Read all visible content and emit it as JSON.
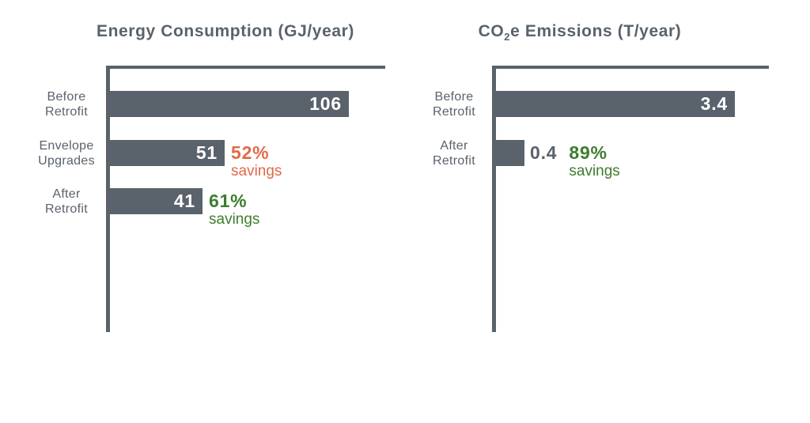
{
  "colors": {
    "slate": "#5A626C",
    "orange": "#E1694B",
    "green": "#3D7D2E",
    "bar_value_text": "#FFFFFF",
    "background": "#FFFFFF"
  },
  "chart_data": [
    {
      "type": "bar",
      "orientation": "horizontal",
      "title": "Energy Consumption (GJ/year)",
      "unit": "GJ/year",
      "axis_max": 106,
      "grid": false,
      "legend": false,
      "categories": [
        "Before Retrofit",
        "Envelope Upgrades",
        "After Retrofit"
      ],
      "values": [
        106,
        51,
        41
      ],
      "bars": [
        {
          "label_lines": [
            "Before",
            "Retrofit"
          ],
          "value": 106,
          "value_label": "106"
        },
        {
          "label_lines": [
            "Envelope",
            "Upgrades"
          ],
          "value": 51,
          "value_label": "51",
          "savings_pct": "52%",
          "savings_word": "savings",
          "savings_color": "#E1694B"
        },
        {
          "label_lines": [
            "After",
            "Retrofit"
          ],
          "value": 41,
          "value_label": "41",
          "savings_pct": "61%",
          "savings_word": "savings",
          "savings_color": "#3D7D2E"
        }
      ]
    },
    {
      "type": "bar",
      "orientation": "horizontal",
      "title": "CO2e Emissions (T/year)",
      "title_parts": {
        "pre": "CO",
        "sub": "2",
        "post": "e Emissions (T/year)"
      },
      "unit": "T/year",
      "axis_max": 3.4,
      "grid": false,
      "legend": false,
      "categories": [
        "Before Retrofit",
        "After Retrofit"
      ],
      "values": [
        3.4,
        0.4
      ],
      "bars": [
        {
          "label_lines": [
            "Before",
            "Retrofit"
          ],
          "value": 3.4,
          "value_label": "3.4"
        },
        {
          "label_lines": [
            "After",
            "Retrofit"
          ],
          "value": 0.4,
          "value_label": "0.4",
          "value_outside": true,
          "savings_pct": "89%",
          "savings_word": "savings",
          "savings_color": "#3D7D2E"
        }
      ]
    }
  ]
}
